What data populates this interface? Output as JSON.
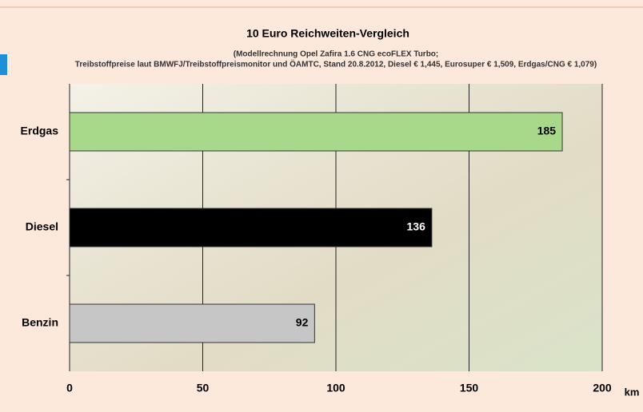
{
  "chart_data": {
    "type": "hbar",
    "title": "10 Euro Reichweiten-Vergleich",
    "subtitle": [
      "(Modellrechnung Opel Zafira 1.6 CNG ecoFLEX Turbo;",
      "Treibstoffpreise laut BMWFJ/Treibstoffpreismonitor und ÖAMTC, Stand 20.8.2012, Diesel € 1,445, Eurosuper € 1,509, Erdgas/CNG € 1,079)"
    ],
    "categories": [
      "Erdgas",
      "Diesel",
      "Benzin"
    ],
    "values": [
      185,
      136,
      92
    ],
    "colors": [
      "#a8d889",
      "#000000",
      "#c6c6c6"
    ],
    "xlabel": "km",
    "xlim": [
      0,
      200
    ],
    "xticks": [
      0,
      50,
      100,
      150,
      200
    ],
    "grid": true
  }
}
